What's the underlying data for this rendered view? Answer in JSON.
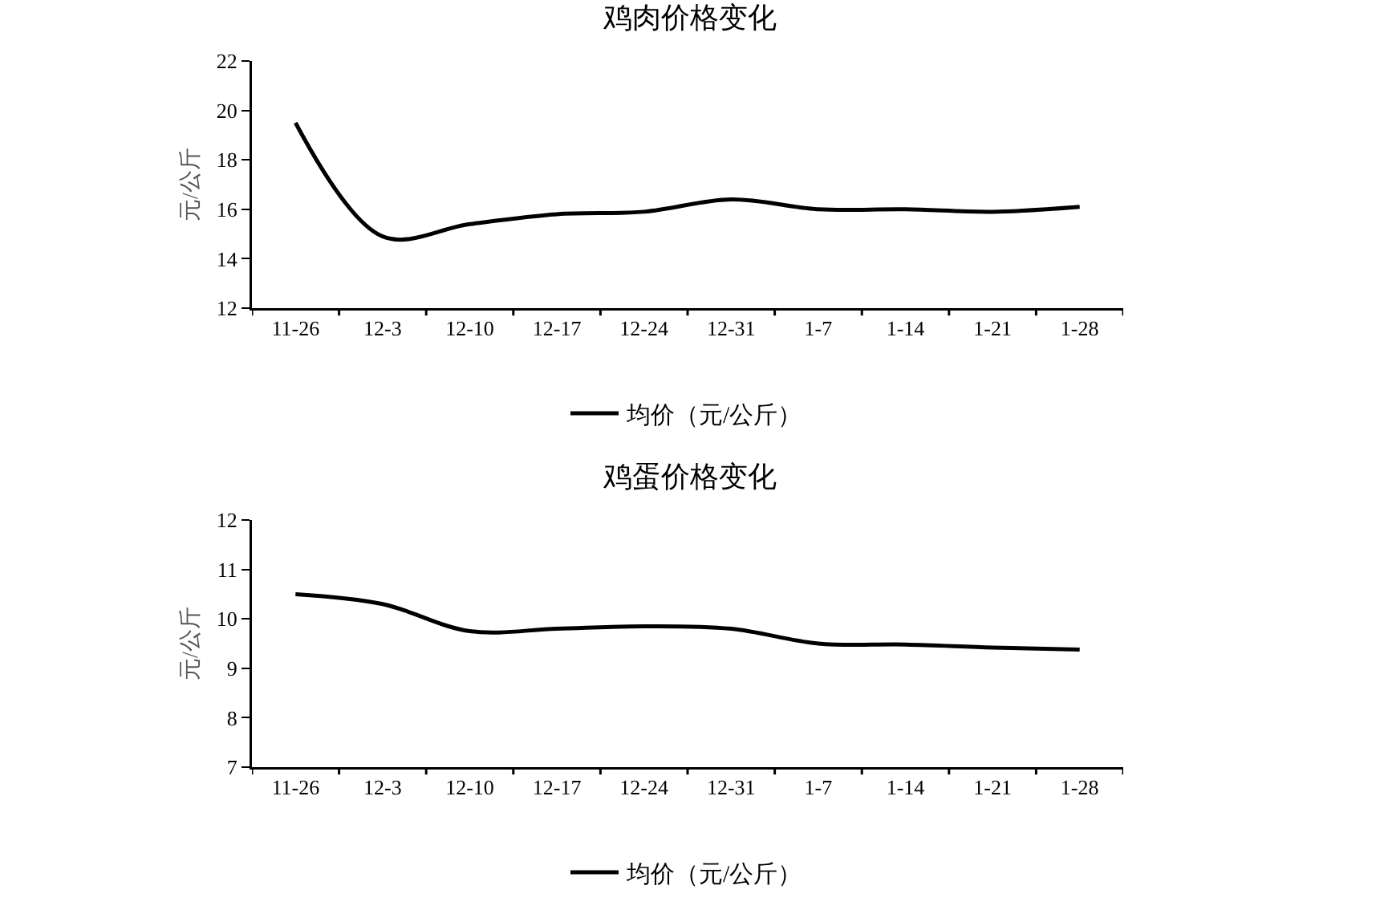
{
  "chart_data": [
    {
      "type": "line",
      "title": "鸡肉价格变化",
      "ylabel": "元/公斤",
      "categories": [
        "11-26",
        "12-3",
        "12-10",
        "12-17",
        "12-24",
        "12-31",
        "1-7",
        "1-14",
        "1-21",
        "1-28"
      ],
      "series": [
        {
          "name": "均价（元/公斤）",
          "color": "#000000",
          "values": [
            19.5,
            14.9,
            15.4,
            15.8,
            15.9,
            16.4,
            16.0,
            16.0,
            15.9,
            16.1
          ]
        }
      ],
      "ylim": [
        12,
        22
      ],
      "yticks": [
        12,
        14,
        16,
        18,
        20,
        22
      ],
      "grid": false,
      "legend": "bottom",
      "marker": "none",
      "line_style": "solid"
    },
    {
      "type": "line",
      "title": "鸡蛋价格变化",
      "ylabel": "元/公斤",
      "categories": [
        "11-26",
        "12-3",
        "12-10",
        "12-17",
        "12-24",
        "12-31",
        "1-7",
        "1-14",
        "1-21",
        "1-28"
      ],
      "series": [
        {
          "name": "均价（元/公斤）",
          "color": "#000000",
          "values": [
            10.5,
            10.3,
            9.75,
            9.8,
            9.85,
            9.8,
            9.5,
            9.48,
            9.42,
            9.38
          ]
        }
      ],
      "ylim": [
        7,
        12
      ],
      "yticks": [
        7,
        8,
        9,
        10,
        11,
        12
      ],
      "grid": false,
      "legend": "bottom",
      "marker": "none",
      "line_style": "solid"
    }
  ]
}
